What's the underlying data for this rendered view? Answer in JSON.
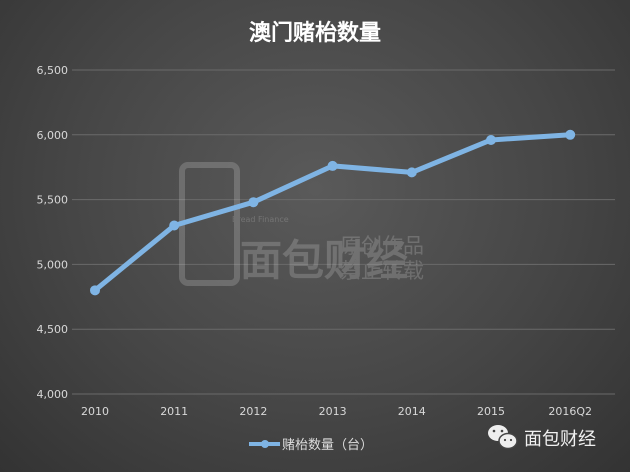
{
  "chart_data": {
    "type": "line",
    "title": "澳门赌枱数量",
    "categories": [
      "2010",
      "2011",
      "2012",
      "2013",
      "2014",
      "2015",
      "2016Q2"
    ],
    "series": [
      {
        "name": "赌枱数量（台）",
        "values": [
          4800,
          5300,
          5480,
          5760,
          5710,
          5960,
          6000
        ]
      }
    ],
    "ylim": [
      4000,
      6500
    ],
    "yticks": [
      "4,000",
      "4,500",
      "5,000",
      "5,500",
      "6,000",
      "6,500"
    ],
    "grid": true,
    "legend": "bottom",
    "line_color": "#7fb4e4"
  },
  "watermark": {
    "logo": "面包财经",
    "sub": "Bread Finance",
    "line1": "原创作品",
    "line2": "禁止转载"
  },
  "brand": {
    "name": "面包财经",
    "icon": "wechat-icon"
  }
}
